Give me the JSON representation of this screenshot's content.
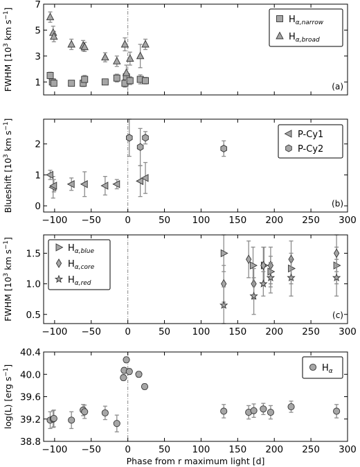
{
  "chart_data": [
    {
      "id": "a",
      "type": "scatter",
      "panel_label": "(a)",
      "ylabel": "FWHM [10$^3$ km s$^{-1}$]",
      "ylabel_parts": [
        "FWHM [10",
        "3",
        " km s",
        "−1",
        "]"
      ],
      "xlim": [
        -115,
        300
      ],
      "ylim": [
        0,
        7
      ],
      "yticks": [
        1,
        3,
        5,
        7
      ],
      "xtick_labels_shown": false,
      "vline_x": 0,
      "legend_position": "upper right",
      "series": [
        {
          "name": "H_alpha,narrow",
          "label_main": "H",
          "label_sub": "α,narrow",
          "marker": "square",
          "points": [
            {
              "x": -106,
              "y": 1.5,
              "err": 0.25
            },
            {
              "x": -103,
              "y": 1.0,
              "err": 0.2
            },
            {
              "x": -101,
              "y": 0.9,
              "err": 0.2
            },
            {
              "x": -77,
              "y": 0.9,
              "err": 0.2
            },
            {
              "x": -61,
              "y": 0.9,
              "err": 0.25
            },
            {
              "x": -59,
              "y": 1.2,
              "err": 0.3
            },
            {
              "x": -31,
              "y": 1.0,
              "err": 0.2
            },
            {
              "x": -15,
              "y": 1.3,
              "err": 0.3
            },
            {
              "x": -4,
              "y": 0.9,
              "err": 0.3
            },
            {
              "x": -2,
              "y": 1.4,
              "err": 0.35
            },
            {
              "x": 3,
              "y": 1.1,
              "err": 0.3
            },
            {
              "x": 17,
              "y": 1.2,
              "err": 0.35
            },
            {
              "x": 24,
              "y": 1.1,
              "err": 0.25
            }
          ]
        },
        {
          "name": "H_alpha,broad",
          "label_main": "H",
          "label_sub": "α,broad",
          "marker": "triangle-up",
          "points": [
            {
              "x": -106,
              "y": 6.0,
              "err": 0.4
            },
            {
              "x": -102,
              "y": 4.8,
              "err": 0.5
            },
            {
              "x": -101,
              "y": 4.5,
              "err": 0.4
            },
            {
              "x": -77,
              "y": 3.9,
              "err": 0.4
            },
            {
              "x": -61,
              "y": 3.8,
              "err": 0.4
            },
            {
              "x": -59,
              "y": 3.7,
              "err": 0.35
            },
            {
              "x": -31,
              "y": 2.9,
              "err": 0.35
            },
            {
              "x": -15,
              "y": 2.6,
              "err": 0.4
            },
            {
              "x": -4,
              "y": 3.9,
              "err": 0.5
            },
            {
              "x": -2,
              "y": 1.7,
              "err": 0.6
            },
            {
              "x": 3,
              "y": 2.8,
              "err": 0.5
            },
            {
              "x": 17,
              "y": 3.0,
              "err": 0.9
            },
            {
              "x": 24,
              "y": 3.9,
              "err": 0.4
            }
          ]
        }
      ]
    },
    {
      "id": "b",
      "type": "scatter",
      "panel_label": "(b)",
      "ylabel": "Blueshift [10$^3$ km s$^{-1}$]",
      "ylabel_parts": [
        "Blueshift [10",
        "3",
        " km s",
        "−1",
        "]"
      ],
      "xlim": [
        -115,
        300
      ],
      "ylim": [
        -0.2,
        2.8
      ],
      "yticks": [
        0,
        1,
        2
      ],
      "xtick_labels_shown": true,
      "vline_x": 0,
      "legend_position": "upper right",
      "series": [
        {
          "name": "P-Cy1",
          "label_main": "P-Cy1",
          "label_sub": "",
          "marker": "triangle-left",
          "points": [
            {
              "x": -106,
              "y": 1.0,
              "err": 0.15
            },
            {
              "x": -102,
              "y": 0.6,
              "err": 0.35
            },
            {
              "x": -101,
              "y": 0.65,
              "err": 0.2
            },
            {
              "x": -77,
              "y": 0.7,
              "err": 0.2
            },
            {
              "x": -59,
              "y": 0.7,
              "err": 0.4
            },
            {
              "x": -31,
              "y": 0.65,
              "err": 0.3
            },
            {
              "x": -15,
              "y": 0.7,
              "err": 0.15
            },
            {
              "x": 17,
              "y": 0.8,
              "err": 0.5
            },
            {
              "x": 24,
              "y": 0.9,
              "err": 0.5
            }
          ]
        },
        {
          "name": "P-Cy2",
          "label_main": "P-Cy2",
          "label_sub": "",
          "marker": "hexagon",
          "points": [
            {
              "x": 2,
              "y": 2.2,
              "err": 0.6
            },
            {
              "x": 17,
              "y": 1.9,
              "err": 0.6
            },
            {
              "x": 24,
              "y": 2.2,
              "err": 0.2
            },
            {
              "x": 131,
              "y": 1.85,
              "err": 0.25
            }
          ]
        }
      ]
    },
    {
      "id": "c",
      "type": "scatter",
      "panel_label": "(c)",
      "ylabel": "FWHM [10$^3$ km s$^{-1}$]",
      "ylabel_parts": [
        "FWHM [10",
        "3",
        " km s",
        "−1",
        "]"
      ],
      "xlim": [
        -115,
        300
      ],
      "ylim": [
        0.35,
        1.8
      ],
      "yticks": [
        0.5,
        1.0,
        1.5
      ],
      "ytick_labels": [
        "0.5",
        "1.0",
        "1.5"
      ],
      "xtick_labels_shown": true,
      "vline_x": 0,
      "legend_position": "upper left",
      "series": [
        {
          "name": "H_alpha,blue",
          "label_main": "H",
          "label_sub": "α,blue",
          "marker": "triangle-right",
          "points": [
            {
              "x": 131,
              "y": 1.5,
              "err": 0.3
            },
            {
              "x": 171,
              "y": 1.3,
              "err": 0.3
            },
            {
              "x": 186,
              "y": 1.3,
              "err": 0.3
            },
            {
              "x": 195,
              "y": 1.2,
              "err": 0.25
            },
            {
              "x": 223,
              "y": 1.25,
              "err": 0.25
            },
            {
              "x": 285,
              "y": 1.3,
              "err": 0.3
            }
          ]
        },
        {
          "name": "H_alpha,core",
          "label_main": "H",
          "label_sub": "α,core",
          "marker": "diamond",
          "points": [
            {
              "x": 131,
              "y": 1.0,
              "err": 0.3
            },
            {
              "x": 165,
              "y": 1.4,
              "err": 0.3
            },
            {
              "x": 172,
              "y": 1.0,
              "err": 0.25
            },
            {
              "x": 185,
              "y": 1.3,
              "err": 0.3
            },
            {
              "x": 195,
              "y": 1.3,
              "err": 0.3
            },
            {
              "x": 223,
              "y": 1.4,
              "err": 0.3
            },
            {
              "x": 285,
              "y": 1.5,
              "err": 0.3
            }
          ]
        },
        {
          "name": "H_alpha,red",
          "label_main": "H",
          "label_sub": "α,red",
          "marker": "star",
          "points": [
            {
              "x": 131,
              "y": 0.65,
              "err": 0.3
            },
            {
              "x": 172,
              "y": 0.8,
              "err": 0.3
            },
            {
              "x": 185,
              "y": 1.0,
              "err": 0.2
            },
            {
              "x": 195,
              "y": 1.1,
              "err": 0.25
            },
            {
              "x": 223,
              "y": 1.1,
              "err": 0.3
            },
            {
              "x": 285,
              "y": 1.1,
              "err": 0.3
            }
          ]
        }
      ]
    },
    {
      "id": "d",
      "type": "scatter",
      "panel_label": "",
      "ylabel": "log(L) [erg s$^{-1}$]",
      "ylabel_parts": [
        "log(L) [erg s",
        "−1",
        "]"
      ],
      "xlim": [
        -115,
        300
      ],
      "ylim": [
        38.8,
        40.4
      ],
      "yticks": [
        38.8,
        39.2,
        39.6,
        40.0,
        40.4
      ],
      "ytick_labels": [
        "38.8",
        "39.2",
        "39.6",
        "40.0",
        "40.4"
      ],
      "xtick_labels_shown": true,
      "xlabel": "Phase from r maximum light [d]",
      "vline_x": 0,
      "legend_position": "upper right",
      "series": [
        {
          "name": "H_alpha",
          "label_main": "H",
          "label_sub": "α",
          "marker": "circle",
          "points": [
            {
              "x": -106,
              "y": 39.18,
              "err": 0.15
            },
            {
              "x": -102,
              "y": 39.2,
              "err": 0.15
            },
            {
              "x": -101,
              "y": 39.21,
              "err": 0.15
            },
            {
              "x": -77,
              "y": 39.18,
              "err": 0.15
            },
            {
              "x": -61,
              "y": 39.36,
              "err": 0.1
            },
            {
              "x": -59,
              "y": 39.33,
              "err": 0.12
            },
            {
              "x": -31,
              "y": 39.31,
              "err": 0.12
            },
            {
              "x": -15,
              "y": 39.12,
              "err": 0.15
            },
            {
              "x": -6,
              "y": 39.94,
              "err": 0.05
            },
            {
              "x": -5,
              "y": 40.07,
              "err": 0.05
            },
            {
              "x": -2,
              "y": 40.26,
              "err": 0.05
            },
            {
              "x": 2,
              "y": 40.05,
              "err": 0.05
            },
            {
              "x": 15,
              "y": 40.0,
              "err": 0.05
            },
            {
              "x": 23,
              "y": 39.78,
              "err": 0.05
            },
            {
              "x": 131,
              "y": 39.34,
              "err": 0.12
            },
            {
              "x": 165,
              "y": 39.32,
              "err": 0.12
            },
            {
              "x": 172,
              "y": 39.35,
              "err": 0.12
            },
            {
              "x": 185,
              "y": 39.38,
              "err": 0.1
            },
            {
              "x": 195,
              "y": 39.32,
              "err": 0.12
            },
            {
              "x": 223,
              "y": 39.42,
              "err": 0.1
            },
            {
              "x": 285,
              "y": 39.34,
              "err": 0.12
            }
          ]
        }
      ]
    }
  ],
  "x_ticks": [
    -100,
    -50,
    0,
    50,
    100,
    150,
    200,
    250,
    300
  ],
  "x_tick_labels": [
    "−100",
    "−50",
    "0",
    "50",
    "100",
    "150",
    "200",
    "250",
    "300"
  ]
}
